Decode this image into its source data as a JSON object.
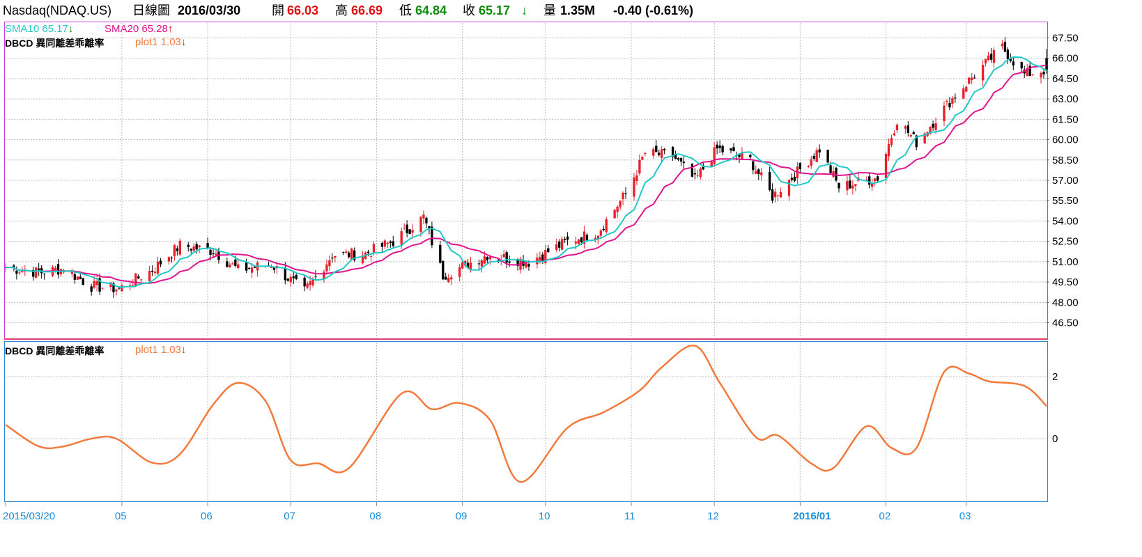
{
  "header": {
    "symbol": "Nasdaq(NDAQ.US)",
    "chart_kind": "日線圖",
    "date": "2016/03/30",
    "open_label": "開",
    "open": "66.03",
    "high_label": "高",
    "high": "66.69",
    "low_label": "低",
    "low": "64.84",
    "close_label": "收",
    "close": "65.17",
    "close_arrow": "↓",
    "volume_label": "量",
    "volume": "1.35M",
    "change": "-0.40 (-0.61%)"
  },
  "price_panel": {
    "sma10_label": "SMA10 65.17",
    "sma10_arrow": "↓",
    "sma20_label": "SMA20 65.28",
    "sma20_arrow": "↑",
    "dbcd_label": "DBCD 異同離差乖離率",
    "plot1_label": "plot1 1.03",
    "plot1_arrow": "↓"
  },
  "indicator_panel": {
    "dbcd_label": "DBCD 異同離差乖離率",
    "plot1_label": "plot1 1.03",
    "plot1_arrow": "↓"
  },
  "colors": {
    "up": "#e8202a",
    "down": "#000000",
    "sma10": "#22c8c8",
    "sma20": "#e0148c",
    "plot1": "#f47a3c",
    "grid": "#bdbdbd",
    "axis_text": "#000000",
    "date_text": "#1a8fd8",
    "border_price": "#d040d0",
    "border_ind": "#2a8ad4"
  },
  "chart_data": [
    {
      "type": "candlestick",
      "title": "Nasdaq(NDAQ.US) 日線圖",
      "ylim": [
        45.4,
        68.6
      ],
      "yticks": [
        "67.50",
        "66.00",
        "64.50",
        "63.00",
        "61.50",
        "60.00",
        "58.50",
        "57.00",
        "55.50",
        "54.00",
        "52.50",
        "51.00",
        "49.50",
        "48.00",
        "46.50"
      ],
      "x_start": "2015/03/20",
      "x_end": "2016/03/30",
      "xticks": [
        "2015/03/20",
        "05",
        "06",
        "07",
        "08",
        "09",
        "10",
        "11",
        "12",
        "2016/01",
        "02",
        "03"
      ],
      "close_keypoints": [
        [
          "2015/03/20",
          50.6
        ],
        [
          "2015/04/01",
          50.2
        ],
        [
          "2015/04/10",
          50.5
        ],
        [
          "2015/04/20",
          49.2
        ],
        [
          "2015/04/30",
          49.0
        ],
        [
          "2015/05/12",
          50.4
        ],
        [
          "2015/05/22",
          52.2
        ],
        [
          "2015/06/03",
          51.8
        ],
        [
          "2015/06/12",
          50.4
        ],
        [
          "2015/06/24",
          50.8
        ],
        [
          "2015/07/06",
          48.8
        ],
        [
          "2015/07/16",
          51.5
        ],
        [
          "2015/07/28",
          51.6
        ],
        [
          "2015/08/07",
          52.5
        ],
        [
          "2015/08/18",
          54.3
        ],
        [
          "2015/08/25",
          50.0
        ],
        [
          "2015/09/10",
          51.5
        ],
        [
          "2015/09/25",
          51.0
        ],
        [
          "2015/10/09",
          52.5
        ],
        [
          "2015/10/20",
          53.2
        ],
        [
          "2015/10/30",
          56.0
        ],
        [
          "2015/11/06",
          59.0
        ],
        [
          "2015/11/16",
          58.8
        ],
        [
          "2015/11/24",
          57.0
        ],
        [
          "2015/12/02",
          59.3
        ],
        [
          "2015/12/14",
          58.5
        ],
        [
          "2015/12/22",
          55.8
        ],
        [
          "2015/12/31",
          57.6
        ],
        [
          "2016/01/08",
          59.3
        ],
        [
          "2016/01/15",
          56.5
        ],
        [
          "2016/01/29",
          57.2
        ],
        [
          "2016/02/05",
          61.5
        ],
        [
          "2016/02/12",
          59.8
        ],
        [
          "2016/02/24",
          62.8
        ],
        [
          "2016/03/04",
          64.8
        ],
        [
          "2016/03/14",
          66.8
        ],
        [
          "2016/03/22",
          64.8
        ],
        [
          "2016/03/30",
          65.17
        ]
      ]
    },
    {
      "type": "line",
      "series": [
        {
          "name": "plot1",
          "color": "#f47a3c"
        }
      ],
      "ylim": [
        -2.0,
        3.1
      ],
      "yticks": [
        "2",
        "0"
      ],
      "keypoints": [
        [
          "2015/03/20",
          0.45
        ],
        [
          "2015/04/01",
          -0.25
        ],
        [
          "2015/04/10",
          -0.25
        ],
        [
          "2015/04/20",
          0.0
        ],
        [
          "2015/04/29",
          0.0
        ],
        [
          "2015/05/12",
          -0.78
        ],
        [
          "2015/05/22",
          -0.5
        ],
        [
          "2015/06/03",
          1.1
        ],
        [
          "2015/06/12",
          1.8
        ],
        [
          "2015/06/22",
          1.2
        ],
        [
          "2015/07/01",
          -0.7
        ],
        [
          "2015/07/11",
          -0.8
        ],
        [
          "2015/07/22",
          -0.95
        ],
        [
          "2015/08/10",
          1.45
        ],
        [
          "2015/08/21",
          0.95
        ],
        [
          "2015/08/31",
          1.15
        ],
        [
          "2015/09/11",
          0.6
        ],
        [
          "2015/09/22",
          -1.4
        ],
        [
          "2015/10/09",
          0.35
        ],
        [
          "2015/10/22",
          0.85
        ],
        [
          "2015/11/04",
          1.55
        ],
        [
          "2015/11/12",
          2.3
        ],
        [
          "2015/11/24",
          3.0
        ],
        [
          "2015/12/03",
          1.8
        ],
        [
          "2015/12/16",
          0.05
        ],
        [
          "2015/12/24",
          0.1
        ],
        [
          "2016/01/05",
          -0.8
        ],
        [
          "2016/01/13",
          -0.95
        ],
        [
          "2016/01/25",
          0.4
        ],
        [
          "2016/02/03",
          -0.3
        ],
        [
          "2016/02/12",
          -0.3
        ],
        [
          "2016/02/22",
          2.15
        ],
        [
          "2016/03/02",
          2.1
        ],
        [
          "2016/03/09",
          1.85
        ],
        [
          "2016/03/22",
          1.7
        ],
        [
          "2016/03/30",
          1.05
        ]
      ]
    }
  ]
}
